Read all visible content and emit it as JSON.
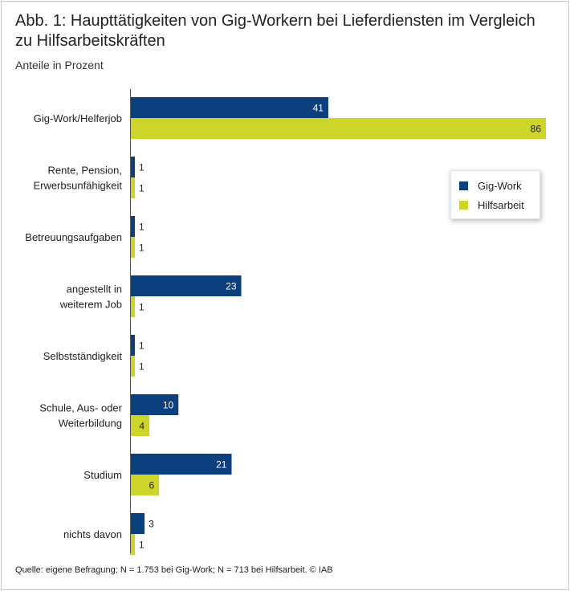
{
  "chart_data": {
    "type": "bar",
    "orientation": "horizontal",
    "title": "Abb. 1: Haupttätigkeiten von Gig-Workern bei Lieferdiensten im Vergleich zu Hilfsarbeitskräften",
    "subtitle": "Anteile in Prozent",
    "categories": [
      "Gig-Work/Helferjob",
      "Rente, Pension,\nErwerbsunfähigkeit",
      "Betreuungsaufgaben",
      "angestellt in\nweiterem Job",
      "Selbstständigkeit",
      "Schule, Aus- oder\nWeiterbildung",
      "Studium",
      "nichts davon"
    ],
    "series": [
      {
        "name": "Gig-Work",
        "color": "#0b3f7e",
        "values": [
          41,
          1,
          1,
          23,
          1,
          10,
          21,
          3
        ]
      },
      {
        "name": "Hilfsarbeit",
        "color": "#cdd52a",
        "values": [
          86,
          1,
          1,
          1,
          1,
          4,
          6,
          1
        ]
      }
    ],
    "xlim": [
      0,
      86
    ],
    "legend_position": "right",
    "source": "Quelle: eigene Befragung; N = 1.753 bei Gig-Work; N = 713 bei Hilfsarbeit. © IAB"
  }
}
